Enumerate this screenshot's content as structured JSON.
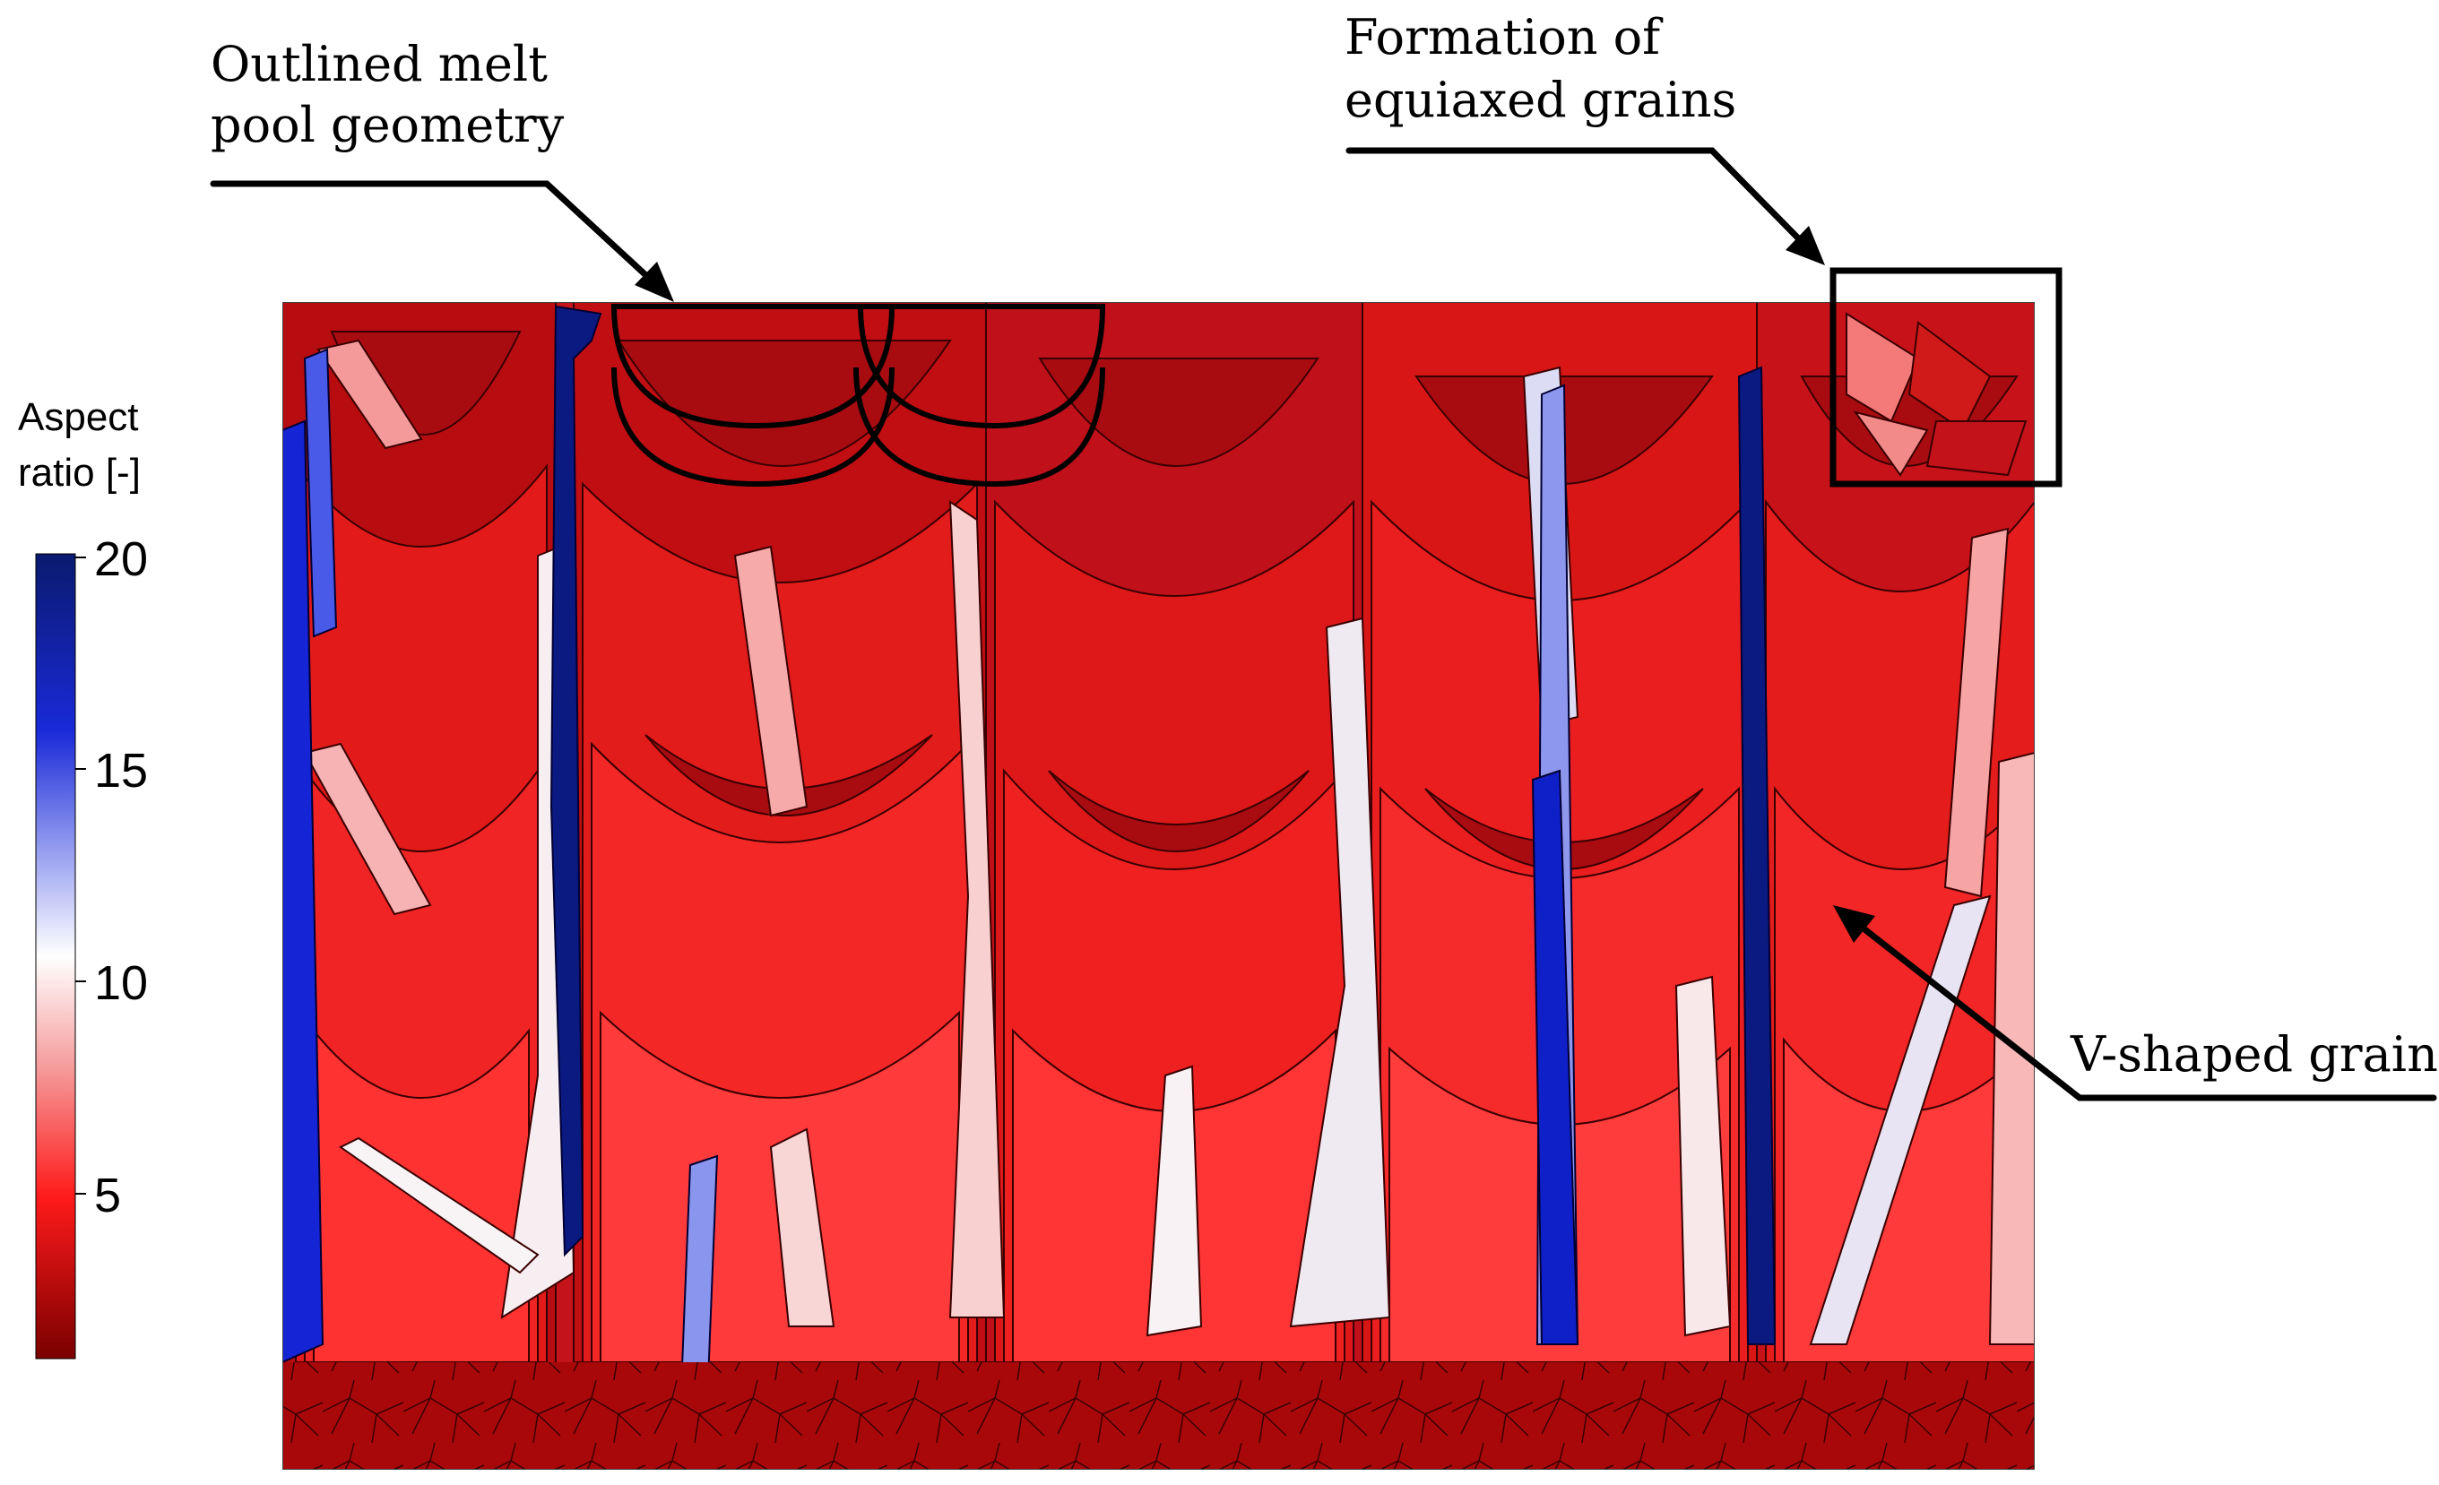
{
  "figure": {
    "annotations": {
      "melt_pool": {
        "line1": "Outlined melt",
        "line2": "pool geometry"
      },
      "equiaxed": {
        "line1": "Formation of",
        "line2": "equiaxed grains"
      },
      "v_grain": {
        "label": "V-shaped grain"
      }
    },
    "colorbar": {
      "title_line1": "Aspect",
      "title_line2": "ratio [-]",
      "ticks": [
        "20",
        "15",
        "10",
        "5"
      ],
      "min_value": 1,
      "max_value": 20,
      "colors": {
        "high": "#0a1a6e",
        "upper": "#1a2ad8",
        "mid": "#ffffff",
        "lower": "#ff1a1a",
        "low": "#7a0000"
      }
    },
    "colors": {
      "grain_dark": "#b30e10",
      "grain_mid": "#e81c1c",
      "grain_bright": "#ff3030",
      "grain_pink": "#f59a9a",
      "grain_white": "#f4f0f2",
      "grain_blue": "#1020c8",
      "grain_navy": "#0b1a80",
      "grain_lightblue": "#8a95ee",
      "base_layer": "#a8080a"
    }
  }
}
